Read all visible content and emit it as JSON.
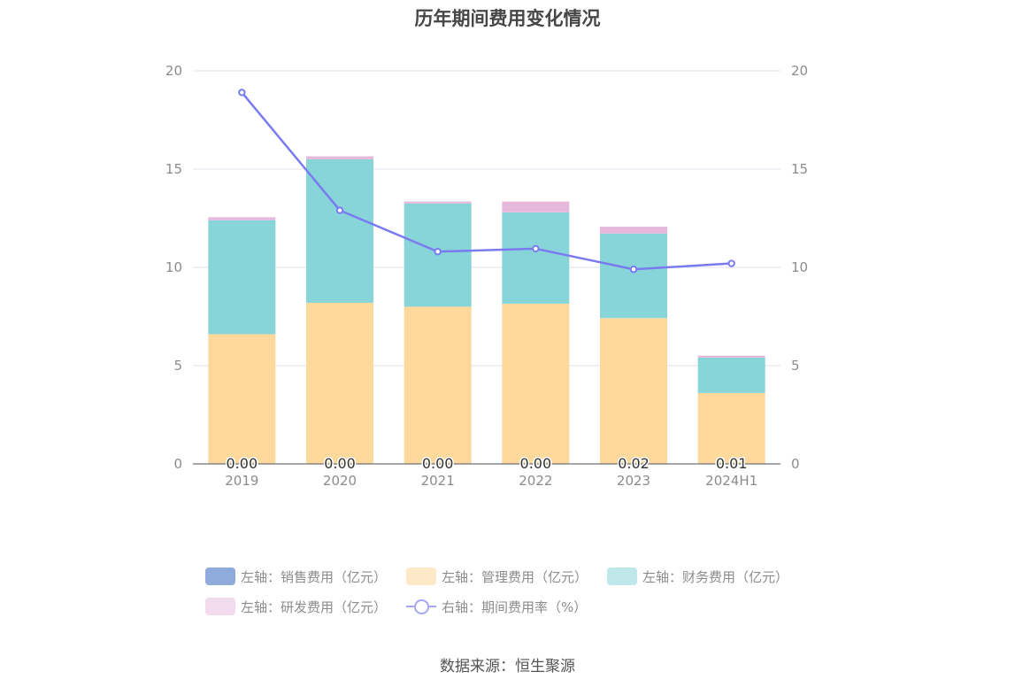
{
  "title": "历年期间费用变化情况",
  "source": "数据来源：恒生聚源",
  "colors": {
    "sales": "#8fabdc",
    "admin": "#ffd89c",
    "finance": "#88d5d9",
    "rd": "#e6b8dc",
    "rate": "#7b7bf0"
  },
  "legend": [
    {
      "key": "sales",
      "label": "左轴：销售费用（亿元）",
      "color": "#8fabdc",
      "kind": "bar"
    },
    {
      "key": "admin",
      "label": "左轴：管理费用（亿元）",
      "color": "#fde8c8",
      "kind": "bar"
    },
    {
      "key": "finance",
      "label": "左轴：财务费用（亿元）",
      "color": "#c0e7ea",
      "kind": "bar"
    },
    {
      "key": "rd",
      "label": "左轴：研发费用（亿元）",
      "color": "#f1dcee",
      "kind": "bar"
    },
    {
      "key": "rate",
      "label": "右轴：期间费用率（%）",
      "color": "#a7a7f7",
      "kind": "line"
    }
  ],
  "chart_data": {
    "type": "bar",
    "title": "历年期间费用变化情况",
    "categories": [
      "2019",
      "2020",
      "2021",
      "2022",
      "2023",
      "2024H1"
    ],
    "ylim_left": [
      0,
      20
    ],
    "ylim_right": [
      0,
      20
    ],
    "yticks_left": [
      0,
      5,
      10,
      15,
      20
    ],
    "yticks_right": [
      0,
      5,
      10,
      15,
      20
    ],
    "grid": true,
    "legend_position": "bottom",
    "stacked": true,
    "series": [
      {
        "name": "左轴：销售费用（亿元）",
        "axis": "left",
        "type": "bar",
        "key": "sales",
        "values": [
          0.0,
          0.0,
          0.0,
          0.0,
          0.02,
          0.01
        ],
        "labels": [
          "0.00",
          "0.00",
          "0.00",
          "0.00",
          "0.02",
          "0.01"
        ]
      },
      {
        "name": "左轴：管理费用（亿元）",
        "axis": "left",
        "type": "bar",
        "key": "admin",
        "values": [
          6.6,
          8.2,
          8.0,
          8.15,
          7.4,
          3.6
        ]
      },
      {
        "name": "左轴：财务费用（亿元）",
        "axis": "left",
        "type": "bar",
        "key": "finance",
        "values": [
          5.8,
          7.3,
          5.25,
          4.65,
          4.3,
          1.8
        ]
      },
      {
        "name": "左轴：研发费用（亿元）",
        "axis": "left",
        "type": "bar",
        "key": "rd",
        "values": [
          0.15,
          0.15,
          0.1,
          0.55,
          0.35,
          0.1
        ]
      },
      {
        "name": "右轴：期间费用率（%）",
        "axis": "right",
        "type": "line",
        "key": "rate",
        "values": [
          18.9,
          12.9,
          10.8,
          10.95,
          9.9,
          10.2
        ]
      }
    ]
  }
}
